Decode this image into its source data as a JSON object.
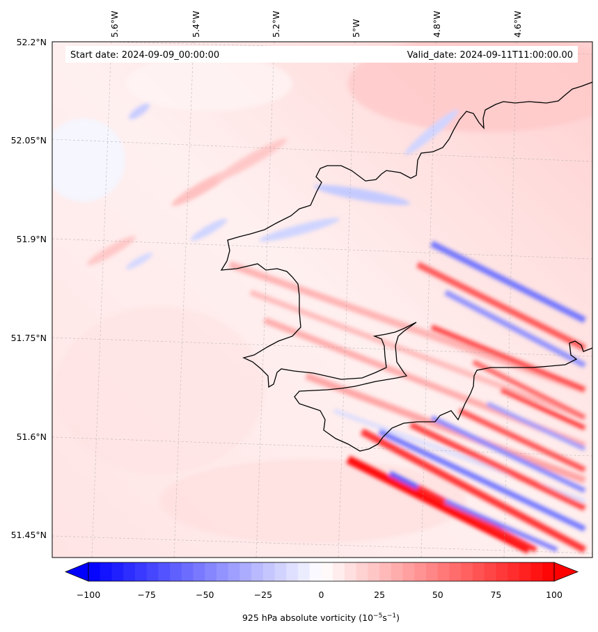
{
  "header": {
    "start_date": "Start date: 2024-09-09_00:00:00",
    "valid_date": "Valid_date: 2024-09-11T11:00:00.00"
  },
  "map": {
    "longitude_labels": [
      "5.6°W",
      "5.4°W",
      "5.2°W",
      "5°W",
      "4.8°W",
      "4.6°W"
    ],
    "latitude_labels": [
      "52.2°N",
      "52.05°N",
      "51.9°N",
      "51.75°N",
      "51.6°N",
      "51.45°N"
    ],
    "field": "925 hPa absolute vorticity",
    "colormap": "bwr"
  },
  "colorbar": {
    "ticks": [
      "−100",
      "−75",
      "−50",
      "−25",
      "0",
      "25",
      "50",
      "75",
      "100"
    ],
    "label": "925 hPa absolute vorticity (10",
    "label_exp": "−5",
    "label_unit": "s",
    "label_unit_exp": "−1",
    "label_close": ")",
    "min": -100,
    "max": 100,
    "levels": 40,
    "extend": "both",
    "color_negative": "#0000ff",
    "color_zero": "#ffffff",
    "color_positive": "#ff0000"
  }
}
